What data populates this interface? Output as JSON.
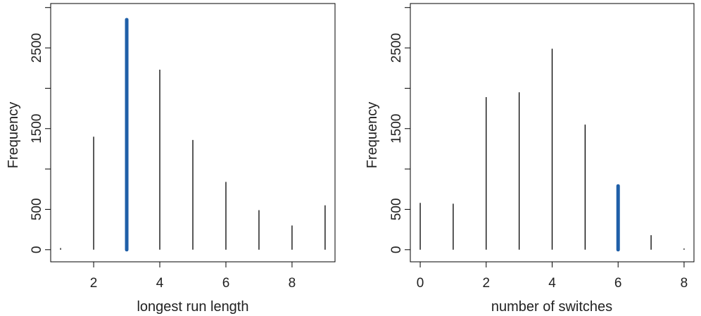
{
  "chart_data": [
    {
      "type": "bar",
      "xlabel": "longest run length",
      "ylabel": "Frequency",
      "xlim": [
        0.7,
        9.3
      ],
      "ylim": [
        -150,
        3050
      ],
      "xticks": [
        "2",
        "4",
        "6",
        "8"
      ],
      "yticks": [
        "0",
        "500",
        "1500",
        "2500"
      ],
      "x": [
        1,
        2,
        3,
        4,
        5,
        6,
        7,
        8,
        9
      ],
      "values": [
        20,
        1400,
        2850,
        2230,
        1360,
        840,
        490,
        300,
        550
      ],
      "highlight_x": 3,
      "line_color": "#000000",
      "highlight_color": "#1f5fa8"
    },
    {
      "type": "bar",
      "xlabel": "number of switches",
      "ylabel": "Frequency",
      "xlim": [
        -0.3,
        8.3
      ],
      "ylim": [
        -150,
        3050
      ],
      "xticks": [
        "0",
        "2",
        "4",
        "6",
        "8"
      ],
      "yticks": [
        "0",
        "500",
        "1500",
        "2500"
      ],
      "x": [
        0,
        1,
        2,
        3,
        4,
        5,
        6,
        7,
        8
      ],
      "values": [
        580,
        570,
        1890,
        1950,
        2490,
        1550,
        790,
        180,
        15
      ],
      "highlight_x": 6,
      "line_color": "#000000",
      "highlight_color": "#1f5fa8"
    }
  ]
}
